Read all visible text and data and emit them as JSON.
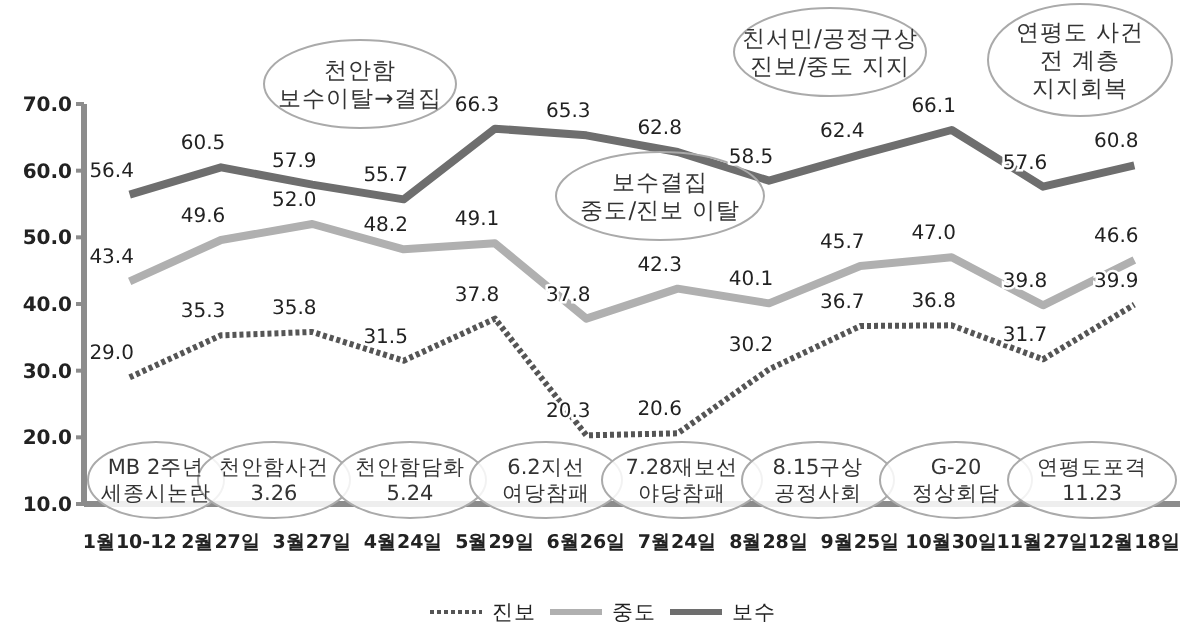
{
  "chart_data": {
    "type": "line",
    "categories": [
      "1월10-12",
      "2월27일",
      "3월27일",
      "4월24일",
      "5월29일",
      "6월26일",
      "7월24일",
      "8월28일",
      "9월25일",
      "10월30일",
      "11월27일",
      "12월18일"
    ],
    "series": [
      {
        "name": "진보",
        "color": "#555555",
        "line_style": "dotted",
        "values": [
          29.0,
          35.3,
          35.8,
          31.5,
          37.8,
          20.3,
          20.6,
          30.2,
          36.7,
          36.8,
          31.7,
          39.9
        ],
        "value_labels": [
          "29.0",
          "35.3",
          "35.8",
          "31.5",
          "37.8",
          "20.3",
          "20.6",
          "30.2",
          "36.7",
          "36.8",
          "31.7",
          "39.9"
        ]
      },
      {
        "name": "중도",
        "color": "#b0b0b0",
        "line_style": "solid",
        "values": [
          43.4,
          49.6,
          52.0,
          48.2,
          49.1,
          37.8,
          42.3,
          40.1,
          45.7,
          47.0,
          39.8,
          46.6
        ],
        "value_labels": [
          "43.4",
          "49.6",
          "52.0",
          "48.2",
          "49.1",
          "37.8",
          "42.3",
          "40.1",
          "45.7",
          "47.0",
          "39.8",
          "46.6"
        ]
      },
      {
        "name": "보수",
        "color": "#6e6e6e",
        "line_style": "solid",
        "values": [
          56.4,
          60.5,
          57.9,
          55.7,
          66.3,
          65.3,
          62.8,
          58.5,
          62.4,
          66.1,
          57.6,
          60.8
        ],
        "value_labels": [
          "56.4",
          "60.5",
          "57.9",
          "55.7",
          "66.3",
          "65.3",
          "62.8",
          "58.5",
          "62.4",
          "66.1",
          "57.6",
          "60.8"
        ]
      }
    ],
    "ylim": [
      10,
      70
    ],
    "yticks": [
      {
        "value": 10,
        "label": "10.0"
      },
      {
        "value": 20,
        "label": "20.0"
      },
      {
        "value": 30,
        "label": "30.0"
      },
      {
        "value": 40,
        "label": "40.0"
      },
      {
        "value": 50,
        "label": "50.0"
      },
      {
        "value": 60,
        "label": "60.0"
      },
      {
        "value": 70,
        "label": "70.0"
      }
    ],
    "grid": false,
    "legend": "bottom",
    "marker": "none",
    "annotations": [
      "천안함\n보수이탈→결집",
      "보수결집\n중도/진보 이탈",
      "친서민/공정구상\n진보/중도 지지",
      "연평도 사건\n전 계층\n지지회복",
      "MB 2주년\n세종시논란",
      "천안함사건\n3.26",
      "천안함담화\n5.24",
      "6.2지선\n여당참패",
      "7.28재보선\n야당참패",
      "8.15구상\n공정사회",
      "G-20\n정상회담",
      "연평도포격\n11.23"
    ]
  }
}
